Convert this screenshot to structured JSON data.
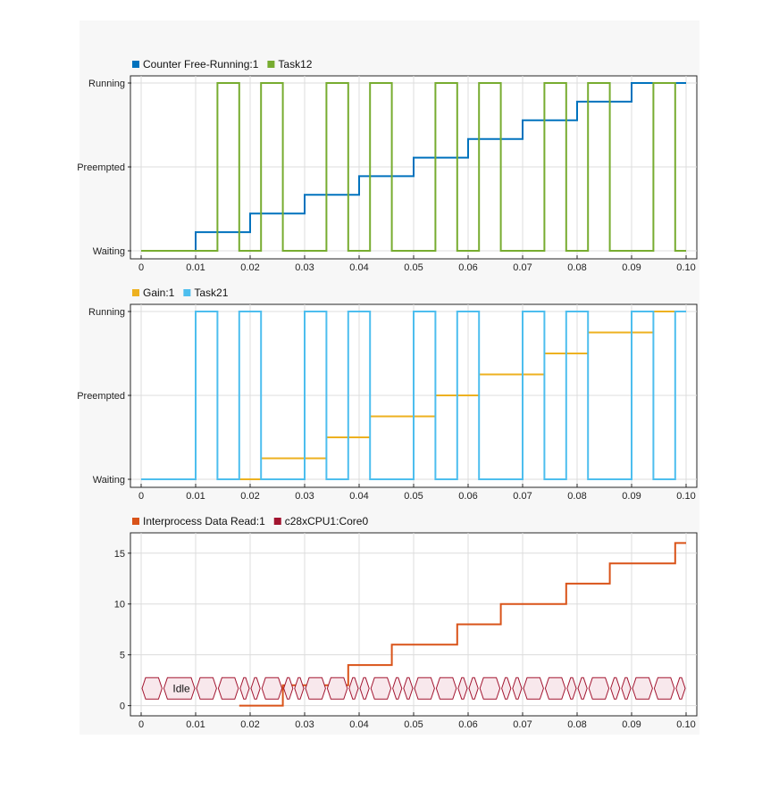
{
  "chart_data": [
    {
      "type": "line",
      "step": true,
      "legend": [
        "Counter Free-Running:1",
        "Task12"
      ],
      "xlim": [
        0,
        0.1
      ],
      "x_ticks": [
        "0",
        "0.01",
        "0.02",
        "0.03",
        "0.04",
        "0.05",
        "0.06",
        "0.07",
        "0.08",
        "0.09",
        "0.10"
      ],
      "y_categories": [
        "Waiting",
        "Preempted",
        "Running"
      ],
      "grid": true,
      "legend_position": "top-left",
      "series": [
        {
          "name": "Counter Free-Running:1",
          "color": "#0072bd",
          "kind": "counter",
          "counter_range": [
            0,
            9
          ],
          "x": [
            0.0,
            0.01,
            0.01,
            0.02,
            0.02,
            0.03,
            0.03,
            0.04,
            0.04,
            0.05,
            0.05,
            0.06,
            0.06,
            0.07,
            0.07,
            0.08,
            0.08,
            0.09,
            0.09,
            0.1
          ],
          "y": [
            0,
            0,
            1,
            1,
            2,
            2,
            3,
            3,
            4,
            4,
            5,
            5,
            6,
            6,
            7,
            7,
            8,
            8,
            9,
            9
          ]
        },
        {
          "name": "Task12",
          "color": "#77ac30",
          "kind": "state",
          "x": [
            0.0,
            0.014,
            0.014,
            0.018,
            0.018,
            0.022,
            0.022,
            0.026,
            0.026,
            0.034,
            0.034,
            0.038,
            0.038,
            0.042,
            0.042,
            0.046,
            0.046,
            0.054,
            0.054,
            0.058,
            0.058,
            0.062,
            0.062,
            0.066,
            0.066,
            0.074,
            0.074,
            0.078,
            0.078,
            0.082,
            0.082,
            0.086,
            0.086,
            0.094,
            0.094,
            0.098,
            0.098,
            0.1
          ],
          "y": [
            "Waiting",
            "Waiting",
            "Running",
            "Running",
            "Waiting",
            "Waiting",
            "Running",
            "Running",
            "Waiting",
            "Waiting",
            "Running",
            "Running",
            "Waiting",
            "Waiting",
            "Running",
            "Running",
            "Waiting",
            "Waiting",
            "Running",
            "Running",
            "Waiting",
            "Waiting",
            "Running",
            "Running",
            "Waiting",
            "Waiting",
            "Running",
            "Running",
            "Waiting",
            "Waiting",
            "Running",
            "Running",
            "Waiting",
            "Waiting",
            "Running",
            "Running",
            "Waiting",
            "Waiting"
          ]
        }
      ]
    },
    {
      "type": "line",
      "step": true,
      "legend": [
        "Gain:1",
        "Task21"
      ],
      "xlim": [
        0,
        0.1
      ],
      "x_ticks": [
        "0",
        "0.01",
        "0.02",
        "0.03",
        "0.04",
        "0.05",
        "0.06",
        "0.07",
        "0.08",
        "0.09",
        "0.10"
      ],
      "y_categories": [
        "Waiting",
        "Preempted",
        "Running"
      ],
      "grid": true,
      "legend_position": "top-left",
      "series": [
        {
          "name": "Gain:1",
          "color": "#edb120",
          "kind": "segments",
          "counter_range": [
            0,
            8
          ],
          "segments": [
            {
              "x0": 0.018,
              "x1": 0.022,
              "v": 0
            },
            {
              "x0": 0.022,
              "x1": 0.034,
              "v": 1
            },
            {
              "x0": 0.034,
              "x1": 0.042,
              "v": 2
            },
            {
              "x0": 0.042,
              "x1": 0.054,
              "v": 3
            },
            {
              "x0": 0.054,
              "x1": 0.062,
              "v": 4
            },
            {
              "x0": 0.062,
              "x1": 0.074,
              "v": 5
            },
            {
              "x0": 0.074,
              "x1": 0.082,
              "v": 6
            },
            {
              "x0": 0.082,
              "x1": 0.094,
              "v": 7
            },
            {
              "x0": 0.094,
              "x1": 0.098,
              "v": 8
            }
          ]
        },
        {
          "name": "Task21",
          "color": "#4dbeee",
          "kind": "state",
          "x": [
            0.0,
            0.01,
            0.01,
            0.014,
            0.014,
            0.018,
            0.018,
            0.022,
            0.022,
            0.03,
            0.03,
            0.034,
            0.034,
            0.038,
            0.038,
            0.042,
            0.042,
            0.05,
            0.05,
            0.054,
            0.054,
            0.058,
            0.058,
            0.062,
            0.062,
            0.07,
            0.07,
            0.074,
            0.074,
            0.078,
            0.078,
            0.082,
            0.082,
            0.09,
            0.09,
            0.094,
            0.094,
            0.098,
            0.098,
            0.1
          ],
          "y": [
            "Waiting",
            "Waiting",
            "Running",
            "Running",
            "Waiting",
            "Waiting",
            "Running",
            "Running",
            "Waiting",
            "Waiting",
            "Running",
            "Running",
            "Waiting",
            "Waiting",
            "Running",
            "Running",
            "Waiting",
            "Waiting",
            "Running",
            "Running",
            "Waiting",
            "Waiting",
            "Running",
            "Running",
            "Waiting",
            "Waiting",
            "Running",
            "Running",
            "Waiting",
            "Waiting",
            "Running",
            "Running",
            "Waiting",
            "Waiting",
            "Running",
            "Running",
            "Waiting",
            "Waiting",
            "Running",
            "Running"
          ]
        }
      ]
    },
    {
      "type": "line",
      "step": true,
      "legend": [
        "Interprocess Data Read:1",
        "c28xCPU1:Core0"
      ],
      "xlim": [
        0,
        0.1
      ],
      "ylim": [
        -1,
        17
      ],
      "x_ticks": [
        "0",
        "0.01",
        "0.02",
        "0.03",
        "0.04",
        "0.05",
        "0.06",
        "0.07",
        "0.08",
        "0.09",
        "0.10"
      ],
      "y_ticks": [
        0,
        5,
        10,
        15
      ],
      "grid": true,
      "legend_position": "top-left",
      "series": [
        {
          "name": "Interprocess Data Read:1",
          "color": "#d95319",
          "kind": "numeric",
          "x": [
            0.018,
            0.026,
            0.026,
            0.038,
            0.038,
            0.046,
            0.046,
            0.058,
            0.058,
            0.066,
            0.066,
            0.078,
            0.078,
            0.086,
            0.086,
            0.098,
            0.098,
            0.1
          ],
          "y": [
            0,
            0,
            2,
            2,
            4,
            4,
            6,
            6,
            8,
            8,
            10,
            10,
            12,
            12,
            14,
            14,
            16,
            16
          ]
        },
        {
          "name": "c28xCPU1:Core0",
          "color": "#a2142f",
          "kind": "timeline",
          "y_level": 1.7,
          "label": "Idle",
          "boundaries": [
            0.0,
            0.004,
            0.01,
            0.014,
            0.018,
            0.02,
            0.022,
            0.026,
            0.028,
            0.03,
            0.034,
            0.038,
            0.04,
            0.042,
            0.046,
            0.048,
            0.05,
            0.054,
            0.058,
            0.06,
            0.062,
            0.066,
            0.068,
            0.07,
            0.074,
            0.078,
            0.08,
            0.082,
            0.086,
            0.088,
            0.09,
            0.094,
            0.098,
            0.1
          ]
        }
      ]
    }
  ]
}
